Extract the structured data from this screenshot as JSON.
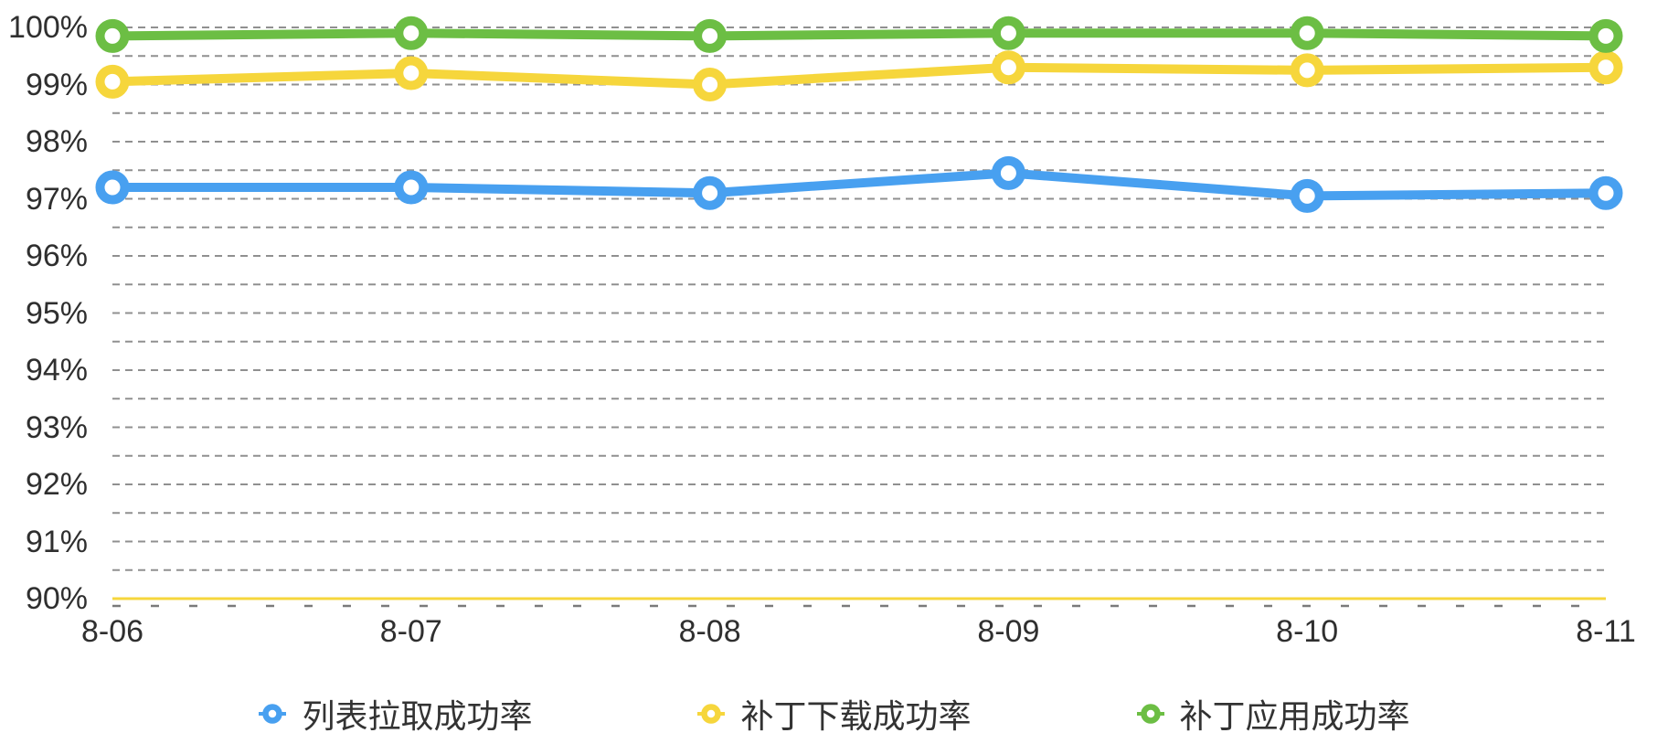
{
  "chart_data": {
    "type": "line",
    "title": "",
    "xlabel": "",
    "ylabel": "",
    "categories": [
      "8-06",
      "8-07",
      "8-08",
      "8-09",
      "8-10",
      "8-11"
    ],
    "series": [
      {
        "key": "list-pull-success-rate",
        "name": "列表拉取成功率",
        "color": "#48a0f0",
        "values": [
          97.2,
          97.2,
          97.1,
          97.45,
          97.05,
          97.1
        ]
      },
      {
        "key": "patch-download-success-rate",
        "name": "补丁下载成功率",
        "color": "#f6d63c",
        "values": [
          99.05,
          99.2,
          99.0,
          99.3,
          99.25,
          99.3
        ]
      },
      {
        "key": "patch-apply-success-rate",
        "name": "补丁应用成功率",
        "color": "#6cbe44",
        "values": [
          99.85,
          99.9,
          99.85,
          99.9,
          99.9,
          99.85
        ]
      }
    ],
    "ylim": [
      90,
      100
    ],
    "y_tick_step": 1,
    "y_grid_step": 0.5,
    "y_tick_labels": [
      "100%",
      "99%",
      "98%",
      "97%",
      "96%",
      "95%",
      "94%",
      "93%",
      "92%",
      "91%",
      "90%"
    ],
    "y_tick_suffix": "%",
    "grid": "horizontal-dashed",
    "grid_color": "#909090",
    "axis_line_color": "#f6d63c",
    "tick_mark_color": "#7a7a7a",
    "text_color": "#2f2f2f",
    "legend_position": "bottom",
    "legend_marker": "ring",
    "background": "#ffffff"
  }
}
